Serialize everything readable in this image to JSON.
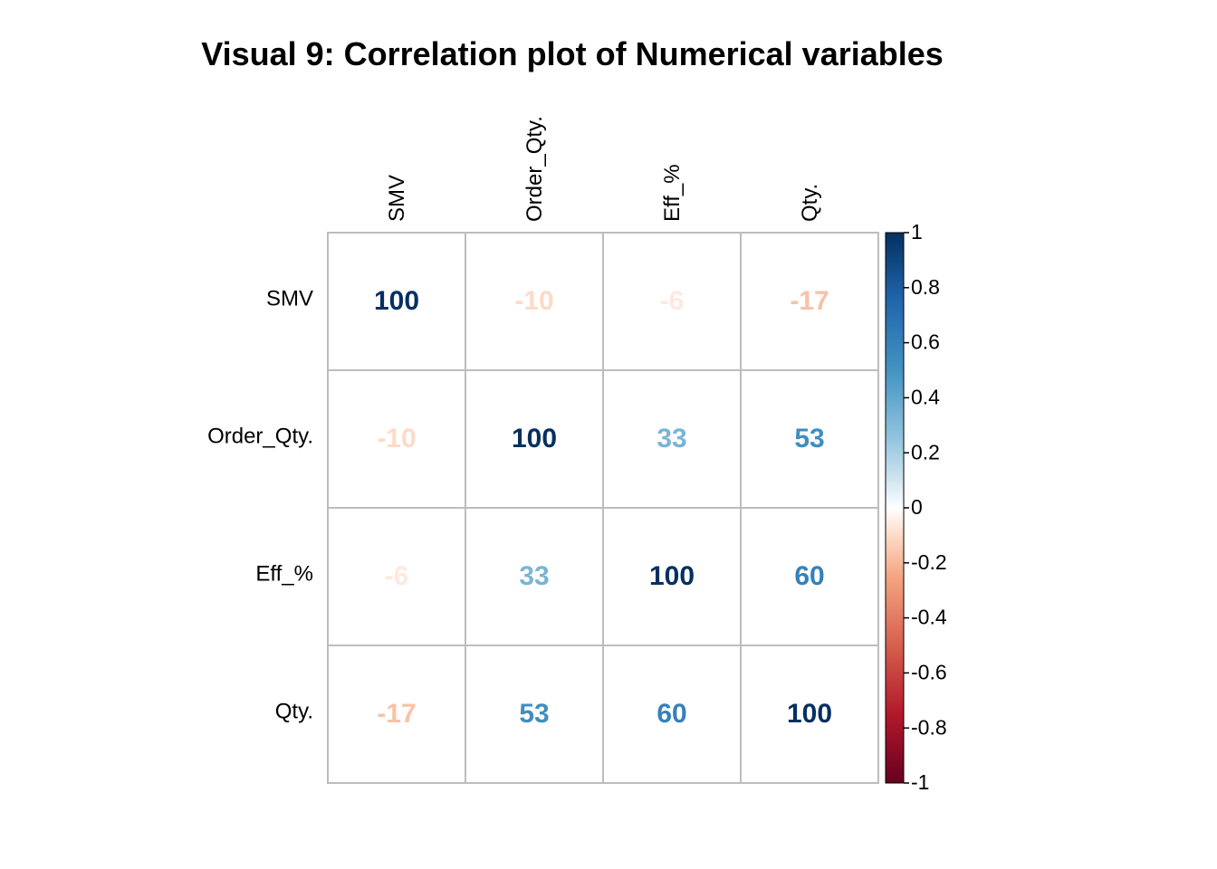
{
  "chart_data": {
    "type": "heatmap",
    "title": "Visual 9: Correlation plot of Numerical variables",
    "variables": [
      "SMV",
      "Order_Qty.",
      "Eff_%",
      "Qty."
    ],
    "values": [
      [
        100,
        -10,
        -6,
        -17
      ],
      [
        -10,
        100,
        33,
        53
      ],
      [
        -6,
        33,
        100,
        60
      ],
      [
        -17,
        53,
        60,
        100
      ]
    ],
    "color_scale": {
      "range": [
        -1,
        1
      ],
      "ticks": [
        "1",
        "0.8",
        "0.6",
        "0.4",
        "0.2",
        "0",
        "-0.2",
        "-0.4",
        "-0.6",
        "-0.8",
        "-1"
      ],
      "stops": [
        {
          "value": -1,
          "color": "#67001F"
        },
        {
          "value": -0.75,
          "color": "#B2182B"
        },
        {
          "value": -0.5,
          "color": "#D6604D"
        },
        {
          "value": -0.25,
          "color": "#F4A582"
        },
        {
          "value": -0.1,
          "color": "#FDDBC7"
        },
        {
          "value": 0,
          "color": "#FFFFFF"
        },
        {
          "value": 0.1,
          "color": "#D1E5F0"
        },
        {
          "value": 0.25,
          "color": "#92C5DE"
        },
        {
          "value": 0.5,
          "color": "#4393C3"
        },
        {
          "value": 0.75,
          "color": "#2166AC"
        },
        {
          "value": 1,
          "color": "#053061"
        }
      ]
    },
    "grid": true,
    "legend_position": "right"
  }
}
